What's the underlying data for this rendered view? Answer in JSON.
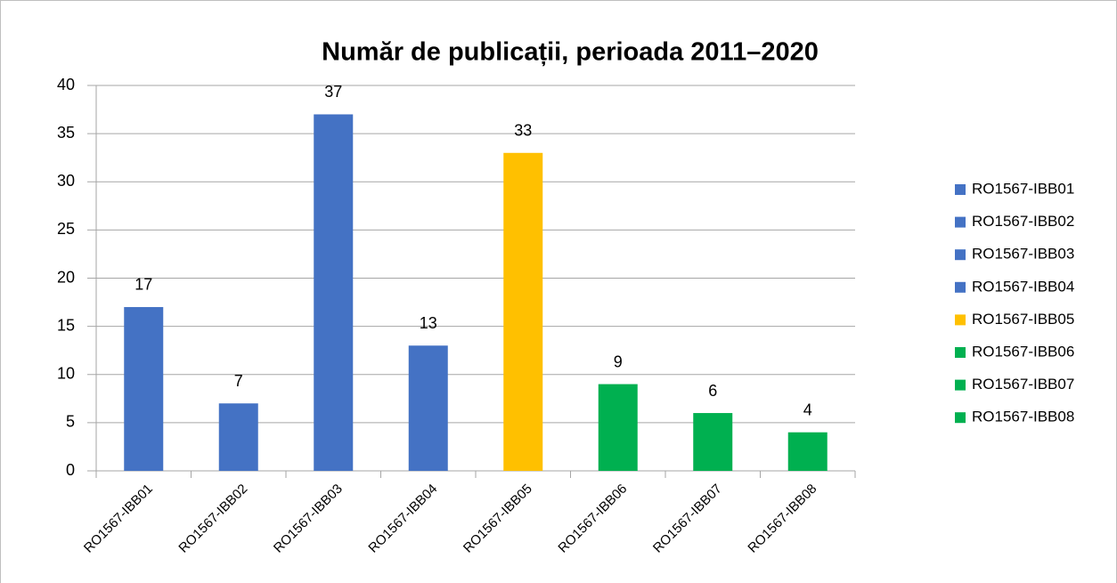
{
  "chart_data": {
    "type": "bar",
    "title": "Număr de publicații, perioada 2011–2020",
    "categories": [
      "RO1567-IBB01",
      "RO1567-IBB02",
      "RO1567-IBB03",
      "RO1567-IBB04",
      "RO1567-IBB05",
      "RO1567-IBB06",
      "RO1567-IBB07",
      "RO1567-IBB08"
    ],
    "values": [
      17,
      7,
      37,
      13,
      33,
      9,
      6,
      4
    ],
    "colors": [
      "#4472c4",
      "#4472c4",
      "#4472c4",
      "#4472c4",
      "#ffc000",
      "#00b050",
      "#00b050",
      "#00b050"
    ],
    "ylim": [
      0,
      40
    ],
    "yticks": [
      0,
      5,
      10,
      15,
      20,
      25,
      30,
      35,
      40
    ],
    "grid": true,
    "legend": "right"
  }
}
